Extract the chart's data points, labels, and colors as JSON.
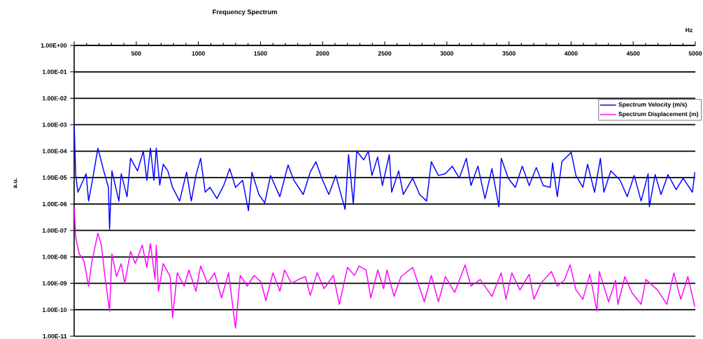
{
  "chart_data": {
    "type": "line",
    "title": "Frequency Spectrum",
    "xlabel": "Hz",
    "ylabel": "a.u.",
    "xlim": [
      0,
      5000
    ],
    "xticks": [
      {
        "value": 0,
        "label": null
      },
      500,
      1000,
      1500,
      2000,
      2500,
      3000,
      3500,
      4000,
      4500,
      5000
    ],
    "ylim": [
      1e-11,
      1
    ],
    "yticks": [
      {
        "value": 1,
        "label": "1.00E+00"
      },
      {
        "value": 0.1,
        "label": "1.00E-01"
      },
      {
        "value": 0.01,
        "label": "1.00E-02"
      },
      {
        "value": 0.001,
        "label": "1.00E-03"
      },
      {
        "value": 0.0001,
        "label": "1.00E-04"
      },
      {
        "value": 1e-05,
        "label": "1.00E-05"
      },
      {
        "value": 1e-06,
        "label": "1.00E-06"
      },
      {
        "value": 1e-07,
        "label": "1.00E-07"
      },
      {
        "value": 1e-08,
        "label": "1.00E-08"
      },
      {
        "value": 1e-09,
        "label": "1.00E-09"
      },
      {
        "value": 1e-10,
        "label": "1.00E-10"
      },
      {
        "value": 1e-11,
        "label": "1.00E-11"
      }
    ],
    "log": "y",
    "grid": "y",
    "legend": "top right",
    "series": [
      {
        "name": "Spectrum Velocity (m/s)",
        "color": "#0000ff",
        "x": [
          0,
          13,
          30,
          97,
          116,
          154,
          191,
          238,
          276,
          285,
          304,
          360,
          379,
          426,
          454,
          510,
          557,
          585,
          614,
          642,
          661,
          689,
          717,
          754,
          792,
          849,
          905,
          943,
          980,
          1018,
          1055,
          1093,
          1149,
          1205,
          1252,
          1299,
          1356,
          1403,
          1431,
          1487,
          1534,
          1581,
          1656,
          1722,
          1769,
          1844,
          1900,
          1946,
          1993,
          2050,
          2106,
          2181,
          2209,
          2247,
          2275,
          2331,
          2368,
          2397,
          2443,
          2481,
          2537,
          2556,
          2612,
          2650,
          2725,
          2781,
          2837,
          2875,
          2932,
          2988,
          3044,
          3100,
          3157,
          3194,
          3250,
          3307,
          3363,
          3419,
          3438,
          3494,
          3551,
          3607,
          3663,
          3720,
          3776,
          3832,
          3851,
          3889,
          3926,
          3983,
          4001,
          4039,
          4095,
          4133,
          4189,
          4236,
          4264,
          4320,
          4395,
          4452,
          4508,
          4564,
          4620,
          4630,
          4677,
          4724,
          4780,
          4846,
          4902,
          4977,
          4996
        ],
        "values": [
          0.001,
          1.2e-05,
          2.8e-06,
          1.4e-05,
          1.3e-06,
          1.2e-05,
          0.00013,
          1.8e-05,
          4.3e-06,
          1.1e-07,
          1.8e-05,
          1.3e-06,
          1.4e-05,
          1.9e-06,
          5.4e-05,
          1.8e-05,
          0.0001,
          7.9e-06,
          0.00013,
          7.9e-06,
          0.00013,
          5.2e-06,
          3.2e-05,
          1.8e-05,
          4.3e-06,
          1.3e-06,
          1.6e-05,
          1.3e-06,
          1.2e-05,
          5.4e-05,
          2.8e-06,
          4.3e-06,
          1.6e-06,
          5.2e-06,
          2.2e-05,
          4.3e-06,
          7.9e-06,
          5.6e-07,
          1.6e-05,
          2.3e-06,
          1.1e-06,
          1.2e-05,
          1.9e-06,
          3e-05,
          7.9e-06,
          2.3e-06,
          1.6e-05,
          4e-05,
          9.5e-06,
          2.3e-06,
          1.2e-05,
          6.3e-07,
          7.4e-05,
          1e-06,
          0.0001,
          4.7e-05,
          0.0001,
          1.2e-05,
          6e-05,
          5e-06,
          7.4e-05,
          2.8e-06,
          1.8e-05,
          2.3e-06,
          9.5e-06,
          2.3e-06,
          1.3e-06,
          4e-05,
          1.2e-05,
          1.4e-05,
          2.7e-05,
          9.5e-06,
          5.4e-05,
          5e-06,
          2.7e-05,
          1.6e-06,
          2.2e-05,
          7.9e-07,
          5.4e-05,
          9.5e-06,
          4.3e-06,
          2.7e-05,
          5e-06,
          2.4e-05,
          5e-06,
          4.3e-06,
          3.6e-05,
          1.9e-06,
          4e-05,
          7.4e-05,
          9.1e-05,
          1.2e-05,
          4.3e-06,
          3.2e-05,
          2.8e-06,
          5.4e-05,
          2.8e-06,
          1.8e-05,
          7.9e-06,
          1.9e-06,
          1.2e-05,
          1.3e-06,
          1.4e-05,
          7.9e-07,
          1.3e-05,
          2.3e-06,
          1.3e-05,
          3.5e-06,
          9.5e-06,
          2.8e-06,
          1.6e-05
        ]
      },
      {
        "name": "Spectrum Displacement (m)",
        "color": "#ff00ff",
        "x": [
          0,
          13,
          41,
          79,
          116,
          144,
          191,
          219,
          248,
          285,
          304,
          341,
          379,
          407,
          454,
          492,
          548,
          585,
          614,
          651,
          661,
          679,
          717,
          773,
          792,
          830,
          886,
          924,
          980,
          1018,
          1074,
          1130,
          1186,
          1243,
          1299,
          1337,
          1393,
          1449,
          1506,
          1543,
          1600,
          1656,
          1693,
          1750,
          1806,
          1862,
          1900,
          1956,
          2012,
          2087,
          2134,
          2200,
          2256,
          2294,
          2350,
          2388,
          2444,
          2491,
          2518,
          2575,
          2631,
          2725,
          2819,
          2875,
          2932,
          2988,
          3063,
          3147,
          3194,
          3269,
          3363,
          3438,
          3476,
          3523,
          3588,
          3663,
          3701,
          3757,
          3842,
          3889,
          3945,
          3992,
          4039,
          4095,
          4151,
          4208,
          4227,
          4302,
          4358,
          4377,
          4433,
          4489,
          4564,
          4602,
          4696,
          4771,
          4827,
          4883,
          4940,
          4996
        ],
        "values": [
          7.9e-07,
          5.2e-08,
          1.3e-08,
          7.1e-09,
          7.9e-10,
          7.1e-09,
          7.9e-08,
          2.8e-08,
          1.8e-09,
          8.9e-11,
          1.3e-08,
          1.8e-09,
          5.6e-09,
          1e-09,
          1.6e-08,
          5.6e-09,
          2.8e-08,
          4e-09,
          3.2e-08,
          1.4e-09,
          2.8e-08,
          5e-10,
          5.6e-09,
          1.8e-09,
          5e-11,
          2.5e-09,
          7.9e-10,
          3.2e-09,
          5e-10,
          4.5e-09,
          1e-09,
          2.5e-09,
          2.8e-10,
          2.5e-09,
          2e-11,
          2e-09,
          7.9e-10,
          2e-09,
          1.1e-09,
          2.2e-10,
          2.5e-09,
          5e-10,
          3.2e-09,
          1e-09,
          1.4e-09,
          1.8e-09,
          3.5e-10,
          2.5e-09,
          6.3e-10,
          2e-09,
          1.6e-10,
          4e-09,
          2e-09,
          4.5e-09,
          3.2e-09,
          2.8e-10,
          3.2e-09,
          6.3e-10,
          3.2e-09,
          3.2e-10,
          1.8e-09,
          4e-09,
          2e-10,
          2e-09,
          2e-10,
          1.8e-09,
          4.5e-10,
          5e-09,
          7.9e-10,
          1.4e-09,
          3.2e-10,
          2.5e-09,
          2.5e-10,
          2.5e-09,
          5.6e-10,
          2.2e-09,
          2.5e-10,
          1e-09,
          2.8e-09,
          7.9e-10,
          1.3e-09,
          5e-09,
          5.6e-10,
          2.5e-10,
          2.2e-09,
          8.9e-11,
          2.8e-09,
          2e-10,
          1.3e-09,
          1.6e-10,
          1.8e-09,
          4.5e-10,
          1.6e-10,
          1.4e-09,
          5.6e-10,
          1.6e-10,
          2.5e-09,
          2.5e-10,
          1.8e-09,
          1.3e-10
        ]
      }
    ]
  }
}
